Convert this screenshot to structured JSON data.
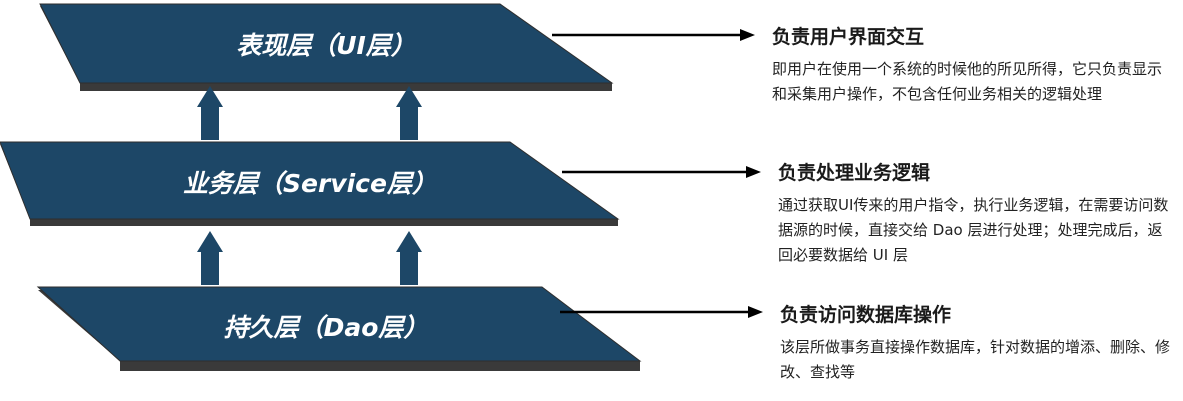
{
  "colors": {
    "layer_fill": "#1d4767",
    "layer_edge": "#3a3a3a",
    "arrow_fill": "#1d4767",
    "pointer": "#000000"
  },
  "layers": [
    {
      "label": "表现层（UI层）",
      "title": "负责用户界面交互",
      "description": "即用户在使用一个系统的时候他的所见所得，它只负责显示和采集用户操作，不包含任何业务相关的逻辑处理"
    },
    {
      "label": "业务层（Service层）",
      "title": "负责处理业务逻辑",
      "description": "通过获取UI传来的用户指令，执行业务逻辑，在需要访问数据源的时候，直接交给 Dao 层进行处理；处理完成后，返回必要数据给 UI 层"
    },
    {
      "label": "持久层（Dao层）",
      "title": "负责访问数据库操作",
      "description": "该层所做事务直接操作数据库，针对数据的增添、删除、修改、查找等"
    }
  ]
}
